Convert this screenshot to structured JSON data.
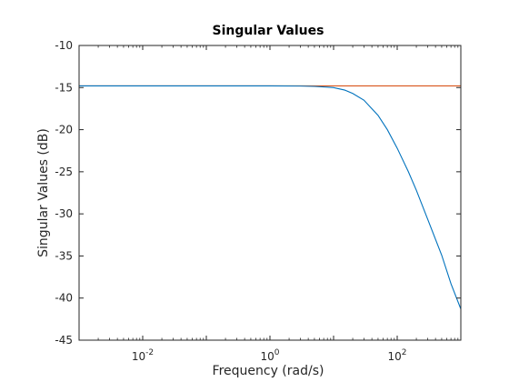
{
  "chart_data": {
    "type": "line",
    "title": "Singular Values",
    "xlabel": "Frequency (rad/s)",
    "ylabel": "Singular Values (dB)",
    "xscale": "log",
    "xlim": [
      0.001,
      1000
    ],
    "ylim": [
      -45,
      -10
    ],
    "grid": false,
    "legend": "none",
    "x_ticks": [
      0.01,
      1,
      100
    ],
    "x_tick_labels": [
      {
        "base": "10",
        "exp": "-2"
      },
      {
        "base": "10",
        "exp": "0"
      },
      {
        "base": "10",
        "exp": "2"
      }
    ],
    "y_ticks": [
      -45,
      -40,
      -35,
      -30,
      -25,
      -20,
      -15,
      -10
    ],
    "y_tick_labels": [
      "-45",
      "-40",
      "-35",
      "-30",
      "-25",
      "-20",
      "-15",
      "-10"
    ],
    "series": [
      {
        "color": "#0072BD",
        "x": [
          0.001,
          1,
          3,
          5,
          8,
          10,
          15,
          20,
          30,
          50,
          70,
          100,
          150,
          200,
          300,
          500,
          700,
          1000
        ],
        "y": [
          -14.8,
          -14.8,
          -14.82,
          -14.86,
          -14.95,
          -15.0,
          -15.3,
          -15.7,
          -16.5,
          -18.3,
          -20.0,
          -22.2,
          -25.0,
          -27.2,
          -30.6,
          -34.9,
          -38.3,
          -41.3
        ]
      },
      {
        "color": "#D95319",
        "x": [
          0.001,
          1000
        ],
        "y": [
          -14.8,
          -14.8
        ]
      }
    ]
  }
}
